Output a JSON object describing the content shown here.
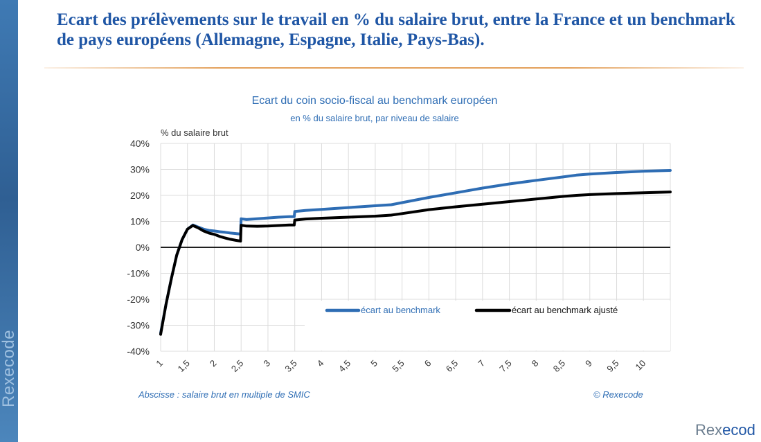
{
  "slide": {
    "title": "Ecart des prélèvements sur le travail en % du salaire brut, entre la France et un benchmark de pays européens (Allemagne, Espagne, Italie, Pays-Bas).",
    "side_brand": "Rexecode",
    "corner_brand_prefix": "Rex",
    "corner_brand_accent": "ecod"
  },
  "chart_data": {
    "type": "line",
    "title": "Ecart du coin socio-fiscal au benchmark européen",
    "subtitle": "en % du salaire brut, par niveau de salaire",
    "ylabel": "% du salaire brut",
    "xlabel": "Abscisse : salaire brut en multiple de SMIC",
    "source": "© Rexecode",
    "ylim": [
      -40,
      40
    ],
    "xlim": [
      1,
      10.5
    ],
    "yticks": [
      40,
      30,
      20,
      10,
      0,
      -10,
      -20,
      -30,
      -40
    ],
    "ytick_labels": [
      "40%",
      "30%",
      "20%",
      "10%",
      "0%",
      "-10%",
      "-20%",
      "-30%",
      "-40%"
    ],
    "xticks": [
      1,
      1.5,
      2,
      2.5,
      3,
      3.5,
      4,
      4.5,
      5,
      5.5,
      6,
      6.5,
      7,
      7.5,
      8,
      8.5,
      9,
      9.5,
      10
    ],
    "xtick_labels": [
      "1",
      "1,5",
      "2",
      "2,5",
      "3",
      "3,5",
      "4",
      "4,5",
      "5",
      "5,5",
      "6",
      "6,5",
      "7",
      "7,5",
      "8",
      "8,5",
      "9",
      "9,5",
      "10"
    ],
    "grid": true,
    "legend_position": "bottom-right, inside plot",
    "series": [
      {
        "name": "écart au benchmark",
        "color": "#2e6db4",
        "points": [
          [
            1,
            -33
          ],
          [
            1.1,
            -22
          ],
          [
            1.2,
            -12
          ],
          [
            1.3,
            -3
          ],
          [
            1.4,
            3
          ],
          [
            1.5,
            7
          ],
          [
            1.6,
            8.6
          ],
          [
            1.7,
            7.8
          ],
          [
            1.8,
            7
          ],
          [
            1.9,
            6.5
          ],
          [
            2,
            6.3
          ],
          [
            2.1,
            6
          ],
          [
            2.2,
            5.8
          ],
          [
            2.3,
            5.5
          ],
          [
            2.4,
            5.3
          ],
          [
            2.49,
            5.1
          ],
          [
            2.5,
            11
          ],
          [
            2.6,
            10.7
          ],
          [
            2.8,
            11
          ],
          [
            3,
            11.3
          ],
          [
            3.2,
            11.6
          ],
          [
            3.4,
            11.8
          ],
          [
            3.49,
            11.8
          ],
          [
            3.5,
            13.8
          ],
          [
            3.7,
            14.2
          ],
          [
            4,
            14.6
          ],
          [
            4.5,
            15.3
          ],
          [
            5,
            16
          ],
          [
            5.3,
            16.4
          ],
          [
            5.5,
            17.2
          ],
          [
            6,
            19.2
          ],
          [
            6.5,
            21
          ],
          [
            7,
            22.8
          ],
          [
            7.5,
            24.4
          ],
          [
            8,
            25.8
          ],
          [
            8.5,
            27.1
          ],
          [
            8.75,
            27.8
          ],
          [
            9,
            28.2
          ],
          [
            9.5,
            28.8
          ],
          [
            10,
            29.3
          ],
          [
            10.5,
            29.6
          ]
        ]
      },
      {
        "name": "écart au benchmark ajusté",
        "color": "#000000",
        "points": [
          [
            1,
            -33.5
          ],
          [
            1.1,
            -22
          ],
          [
            1.2,
            -12
          ],
          [
            1.3,
            -3
          ],
          [
            1.4,
            3
          ],
          [
            1.5,
            7
          ],
          [
            1.6,
            8.4
          ],
          [
            1.7,
            7.5
          ],
          [
            1.8,
            6.3
          ],
          [
            1.9,
            5.5
          ],
          [
            2,
            5
          ],
          [
            2.1,
            4.2
          ],
          [
            2.2,
            3.6
          ],
          [
            2.3,
            3.1
          ],
          [
            2.4,
            2.7
          ],
          [
            2.49,
            2.4
          ],
          [
            2.5,
            8.5
          ],
          [
            2.6,
            8.2
          ],
          [
            2.8,
            8.1
          ],
          [
            3,
            8.2
          ],
          [
            3.2,
            8.4
          ],
          [
            3.4,
            8.6
          ],
          [
            3.49,
            8.6
          ],
          [
            3.5,
            10.5
          ],
          [
            3.7,
            10.9
          ],
          [
            4,
            11.2
          ],
          [
            4.5,
            11.6
          ],
          [
            5,
            12
          ],
          [
            5.3,
            12.4
          ],
          [
            5.5,
            13
          ],
          [
            6,
            14.5
          ],
          [
            6.5,
            15.6
          ],
          [
            7,
            16.6
          ],
          [
            7.5,
            17.6
          ],
          [
            8,
            18.6
          ],
          [
            8.5,
            19.6
          ],
          [
            8.75,
            20
          ],
          [
            9,
            20.3
          ],
          [
            9.5,
            20.7
          ],
          [
            10,
            21
          ],
          [
            10.5,
            21.3
          ]
        ]
      }
    ]
  }
}
